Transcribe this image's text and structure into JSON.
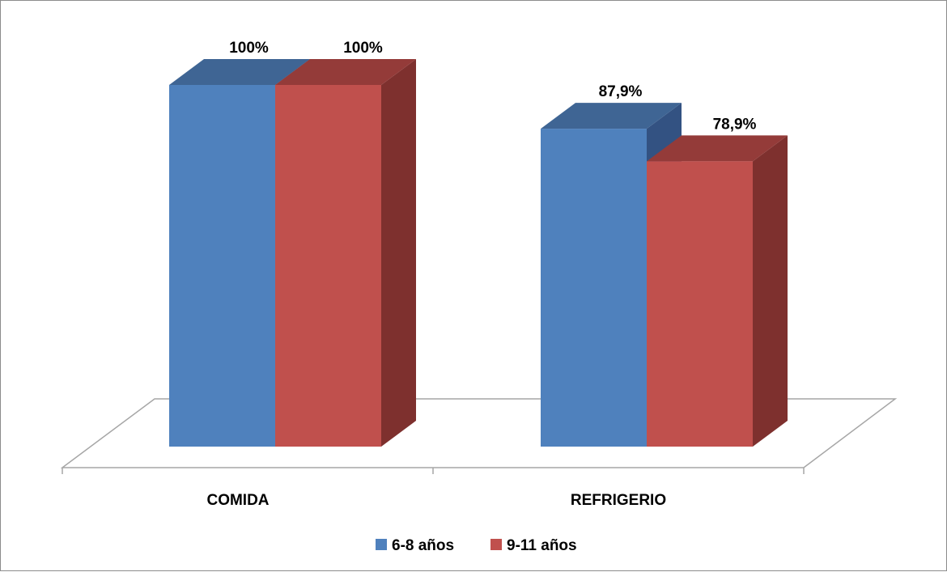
{
  "chart_data": {
    "type": "bar",
    "categories": [
      "COMIDA",
      "REFRIGERIO"
    ],
    "series": [
      {
        "name": "6-8 años",
        "values": [
          100,
          87.9
        ],
        "labels": [
          "100%",
          "87,9%"
        ]
      },
      {
        "name": "9-11 años",
        "values": [
          100,
          78.9
        ],
        "labels": [
          "100%",
          "78,9%"
        ]
      }
    ],
    "ylim": [
      0,
      100
    ],
    "legend_position": "bottom",
    "grid": false,
    "three_d": true,
    "colors": {
      "series_front": [
        "#4f81bd",
        "#c0504d"
      ],
      "series_top": [
        "#3f6594",
        "#943b39"
      ],
      "series_side": [
        "#335282",
        "#7e302e"
      ],
      "floor_line": "#a6a6a6"
    }
  }
}
